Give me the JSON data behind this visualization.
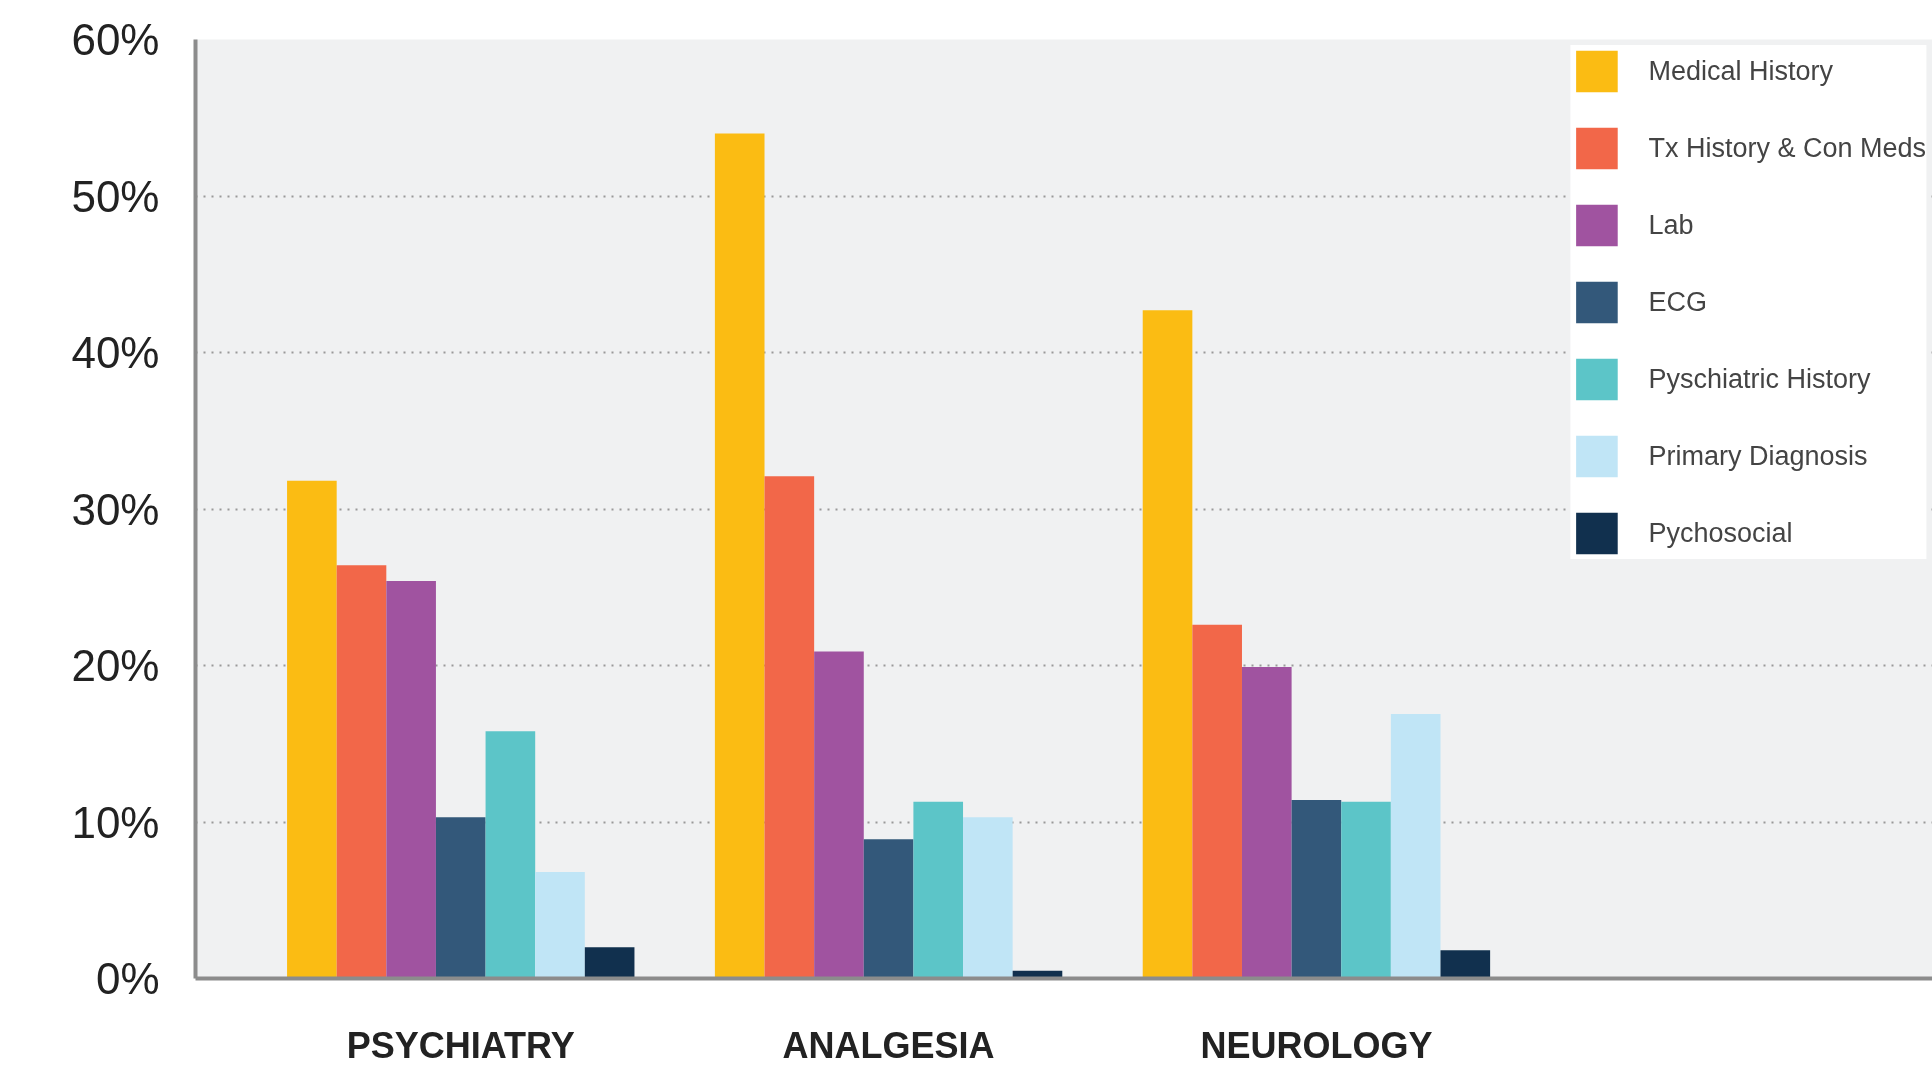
{
  "chart_data": {
    "type": "bar",
    "categories": [
      "PSYCHIATRY",
      "ANALGESIA",
      "NEUROLOGY"
    ],
    "series": [
      {
        "name": "Medical History",
        "color": "#fbbc13",
        "values": [
          31.8,
          54.0,
          42.7
        ]
      },
      {
        "name": "Tx History & Con Meds",
        "color": "#f26749",
        "values": [
          26.4,
          32.1,
          22.6
        ]
      },
      {
        "name": "Lab",
        "color": "#a053a0",
        "values": [
          25.4,
          20.9,
          19.9
        ]
      },
      {
        "name": "ECG",
        "color": "#33587a",
        "values": [
          10.3,
          8.9,
          11.4
        ]
      },
      {
        "name": "Pyschiatric History",
        "color": "#5cc5c8",
        "values": [
          15.8,
          11.3,
          11.3
        ]
      },
      {
        "name": "Primary Diagnosis",
        "color": "#c0e5f6",
        "values": [
          6.8,
          10.3,
          16.9
        ]
      },
      {
        "name": "Pychosocial",
        "color": "#11304e",
        "values": [
          2.0,
          0.5,
          1.8
        ]
      }
    ],
    "ylim": [
      0,
      60
    ],
    "yticks": [
      {
        "value": 0,
        "label": "0%"
      },
      {
        "value": 10,
        "label": "10%"
      },
      {
        "value": 20,
        "label": "20%"
      },
      {
        "value": 30,
        "label": "30%"
      },
      {
        "value": 40,
        "label": "40%"
      },
      {
        "value": 50,
        "label": "50%"
      },
      {
        "value": 60,
        "label": "60%"
      }
    ],
    "grid": "y",
    "legend": "top right"
  }
}
